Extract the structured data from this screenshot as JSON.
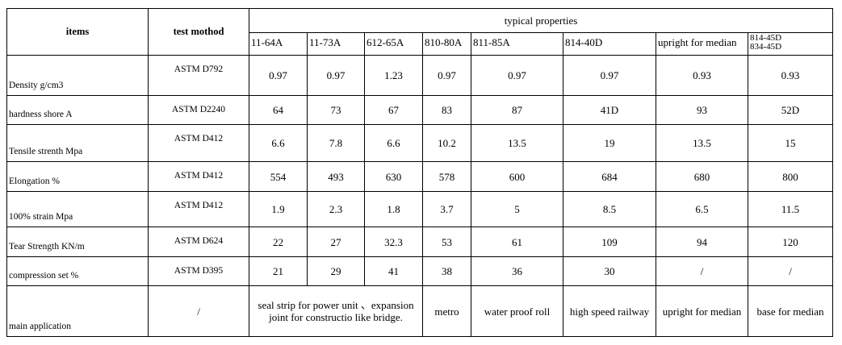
{
  "header": {
    "items": "items",
    "test_method": "test mothod",
    "typical_properties": "typical properties",
    "grades": [
      "11-64A",
      "11-73A",
      "612-65A",
      "810-80A",
      "811-85A",
      "814-40D",
      "upright for median"
    ],
    "last_grade_line1": "814-45D",
    "last_grade_line2": "834-45D"
  },
  "rows": [
    {
      "label": "Density  g/cm3",
      "method": "ASTM D792",
      "values": [
        "0.97",
        "0.97",
        "1.23",
        "0.97",
        "0.97",
        "0.97",
        "0.93",
        "0.93"
      ]
    },
    {
      "label": "hardness shore A",
      "method": "ASTM D2240",
      "values": [
        "64",
        "73",
        "67",
        "83",
        "87",
        "41D",
        "93",
        "52D"
      ]
    },
    {
      "label": "Tensile strenth  Mpa",
      "method": "ASTM D412",
      "values": [
        "6.6",
        "7.8",
        "6.6",
        "10.2",
        "13.5",
        "19",
        "13.5",
        "15"
      ]
    },
    {
      "label": "Elongation  %",
      "method": "ASTM D412",
      "values": [
        "554",
        "493",
        "630",
        "578",
        "600",
        "684",
        "680",
        "800"
      ]
    },
    {
      "label": "100% strain  Mpa",
      "method": "ASTM D412",
      "values": [
        "1.9",
        "2.3",
        "1.8",
        "3.7",
        "5",
        "8.5",
        "6.5",
        "11.5"
      ]
    },
    {
      "label": "Tear Strength  KN/m",
      "method": "ASTM D624",
      "values": [
        "22",
        "27",
        "32.3",
        "53",
        "61",
        "109",
        "94",
        "120"
      ]
    },
    {
      "label": "compression set  %",
      "method": "ASTM D395",
      "values": [
        "21",
        "29",
        "41",
        "38",
        "36",
        "30",
        "/",
        "/"
      ]
    }
  ],
  "application": {
    "label": "main application",
    "method": "/",
    "merged": "seal strip for power unit 、expansion joint for constructio like bridge.",
    "values": [
      "metro",
      "water proof roll",
      "high speed railway",
      "upright for median",
      "base for median"
    ]
  }
}
